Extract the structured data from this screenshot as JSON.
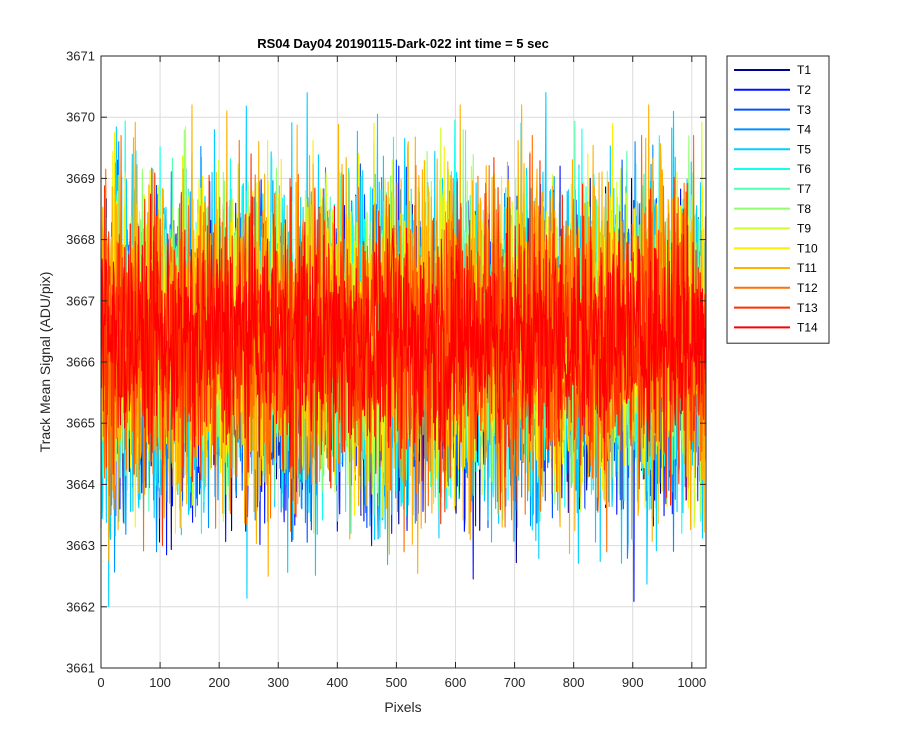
{
  "chart_data": {
    "type": "line",
    "title": "RS04 Day04 20190115-Dark-022 int time = 5 sec",
    "xlabel": "Pixels",
    "ylabel": "Track Mean Signal (ADU/pix)",
    "xlim": [
      0,
      1024
    ],
    "ylim": [
      3661,
      3671
    ],
    "xticks": [
      0,
      100,
      200,
      300,
      400,
      500,
      600,
      700,
      800,
      900,
      1000
    ],
    "yticks": [
      3661,
      3662,
      3663,
      3664,
      3665,
      3666,
      3667,
      3668,
      3669,
      3670,
      3671
    ],
    "grid": true,
    "legend_position": "outside top-right",
    "n_points": 1024,
    "series": [
      {
        "name": "T1",
        "color": "#00008F",
        "mean": 3666.1,
        "range": [
          3662.4,
          3669.0
        ]
      },
      {
        "name": "T2",
        "color": "#0010FF",
        "mean": 3666.0,
        "range": [
          3661.9,
          3669.2
        ]
      },
      {
        "name": "T3",
        "color": "#0050FF",
        "mean": 3666.2,
        "range": [
          3662.6,
          3669.3
        ]
      },
      {
        "name": "T4",
        "color": "#0090FF",
        "mean": 3666.2,
        "range": [
          3662.5,
          3669.6
        ]
      },
      {
        "name": "T5",
        "color": "#00D0FF",
        "mean": 3666.3,
        "range": [
          3662.0,
          3670.4
        ]
      },
      {
        "name": "T6",
        "color": "#10FFEF",
        "mean": 3666.4,
        "range": [
          3663.2,
          3670.0
        ]
      },
      {
        "name": "T7",
        "color": "#50FFAF",
        "mean": 3666.4,
        "range": [
          3663.4,
          3670.0
        ]
      },
      {
        "name": "T8",
        "color": "#90FF6F",
        "mean": 3666.5,
        "range": [
          3663.5,
          3670.1
        ]
      },
      {
        "name": "T9",
        "color": "#D0FF2F",
        "mean": 3666.5,
        "range": [
          3663.3,
          3670.6
        ]
      },
      {
        "name": "T10",
        "color": "#FFEF00",
        "mean": 3666.5,
        "range": [
          3663.2,
          3669.9
        ]
      },
      {
        "name": "T11",
        "color": "#FFB000",
        "mean": 3666.4,
        "range": [
          3662.5,
          3670.2
        ]
      },
      {
        "name": "T12",
        "color": "#FF7000",
        "mean": 3666.4,
        "range": [
          3662.9,
          3669.7
        ]
      },
      {
        "name": "T13",
        "color": "#FF3000",
        "mean": 3666.4,
        "range": [
          3663.0,
          3669.4
        ]
      },
      {
        "name": "T14",
        "color": "#FF0000",
        "mean": 3666.4,
        "range": [
          3664.2,
          3669.3
        ]
      }
    ]
  }
}
